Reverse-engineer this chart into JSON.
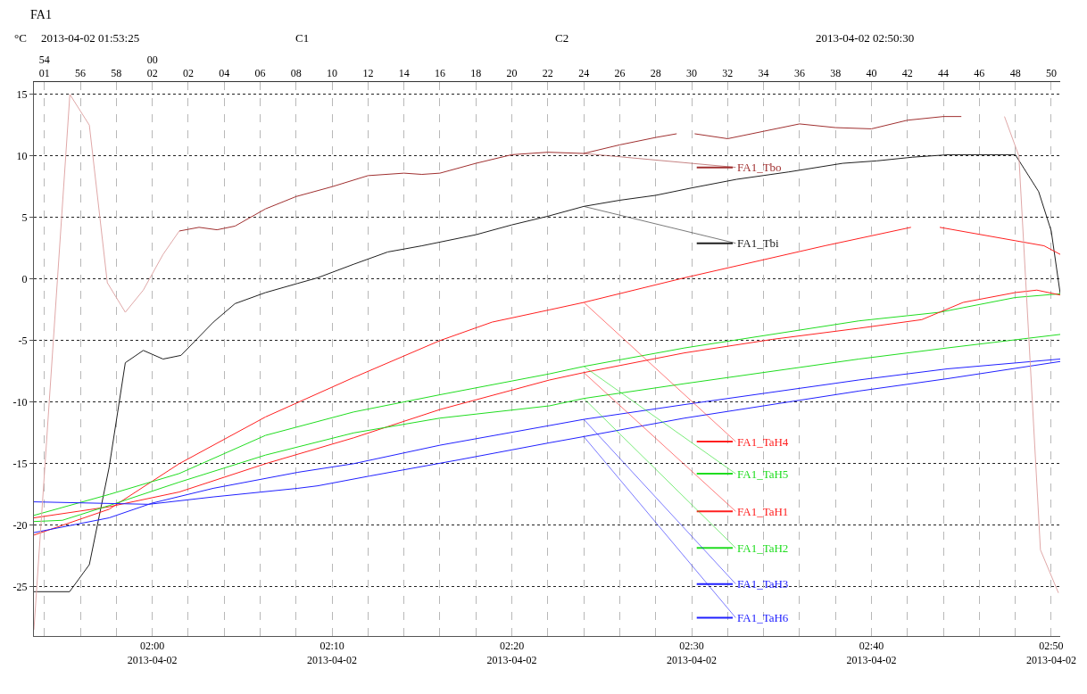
{
  "chart_data": {
    "type": "line",
    "title": "FA1",
    "ylabel": "°C",
    "annotations": [
      "2013-04-02 01:53:25",
      "C1",
      "C2",
      "2013-04-02 02:50:30"
    ],
    "xlim": [
      "2013-04-02T01:53:25",
      "2013-04-02T02:50:30"
    ],
    "xticks": [
      {
        "value": "2013-04-02T02:00",
        "label": "02:00\n2013-04-02"
      },
      {
        "value": "2013-04-02T02:10",
        "label": "02:10\n2013-04-02"
      },
      {
        "value": "2013-04-02T02:20",
        "label": "02:20\n2013-04-02"
      },
      {
        "value": "2013-04-02T02:30",
        "label": "02:30\n2013-04-02"
      },
      {
        "value": "2013-04-02T02:40",
        "label": "02:40\n2013-04-02"
      },
      {
        "value": "2013-04-02T02:50",
        "label": "02:50\n2013-04-02"
      }
    ],
    "x2lim": [
      "2013-04-02T01:53:25",
      "2013-04-02T02:50:30"
    ],
    "x2ticks": [
      {
        "value": "2013-04-02T01:54",
        "label": "54\n01"
      },
      {
        "value": "2013-04-02T01:56",
        "label": "56"
      },
      {
        "value": "2013-04-02T01:58",
        "label": "58"
      },
      {
        "value": "2013-04-02T02:00",
        "label": "00\n02"
      },
      {
        "value": "2013-04-02T02:02",
        "label": "02"
      },
      {
        "value": "2013-04-02T02:04",
        "label": "04"
      },
      {
        "value": "2013-04-02T02:06",
        "label": "06"
      },
      {
        "value": "2013-04-02T02:08",
        "label": "08"
      },
      {
        "value": "2013-04-02T02:10",
        "label": "10"
      },
      {
        "value": "2013-04-02T02:12",
        "label": "12"
      },
      {
        "value": "2013-04-02T02:14",
        "label": "14"
      },
      {
        "value": "2013-04-02T02:16",
        "label": "16"
      },
      {
        "value": "2013-04-02T02:18",
        "label": "18"
      },
      {
        "value": "2013-04-02T02:20",
        "label": "20"
      },
      {
        "value": "2013-04-02T02:22",
        "label": "22"
      },
      {
        "value": "2013-04-02T02:24",
        "label": "24"
      },
      {
        "value": "2013-04-02T02:26",
        "label": "26"
      },
      {
        "value": "2013-04-02T02:28",
        "label": "28"
      },
      {
        "value": "2013-04-02T02:30",
        "label": "30"
      },
      {
        "value": "2013-04-02T02:32",
        "label": "32"
      },
      {
        "value": "2013-04-02T02:34",
        "label": "34"
      },
      {
        "value": "2013-04-02T02:36",
        "label": "36"
      },
      {
        "value": "2013-04-02T02:38",
        "label": "38"
      },
      {
        "value": "2013-04-02T02:40",
        "label": "40"
      },
      {
        "value": "2013-04-02T02:42",
        "label": "42"
      },
      {
        "value": "2013-04-02T02:44",
        "label": "44"
      },
      {
        "value": "2013-04-02T02:46",
        "label": "46"
      },
      {
        "value": "2013-04-02T02:48",
        "label": "48"
      },
      {
        "value": "2013-04-02T02:50",
        "label": "50"
      }
    ],
    "ylim": [
      -29,
      16
    ],
    "yticks": [
      -25,
      -20,
      -15,
      -10,
      -5,
      0,
      5,
      10,
      15
    ],
    "grid": true,
    "legend": "right",
    "marker": "none",
    "line_style": "solid",
    "series": [
      {
        "name": "FA1_Tbo",
        "color": "#a03030",
        "x": [
          "2013-04-02T02:01:30",
          "2013-04-02T02:02:36",
          "2013-04-02T02:03:36",
          "2013-04-02T02:04:36",
          "2013-04-02T02:06:18",
          "2013-04-02T02:08",
          "2013-04-02T02:10",
          "2013-04-02T02:12",
          "2013-04-02T02:14",
          "2013-04-02T02:15",
          "2013-04-02T02:16",
          "2013-04-02T02:18",
          "2013-04-02T02:20",
          "2013-04-02T02:22",
          "2013-04-02T02:24",
          "2013-04-02T02:26",
          "2013-04-02T02:28",
          "2013-04-02T02:29:10",
          "2013-04-02T02:29:40",
          "2013-04-02T02:30:10",
          "2013-04-02T02:32",
          "2013-04-02T02:34",
          "2013-04-02T02:36",
          "2013-04-02T02:38",
          "2013-04-02T02:40",
          "2013-04-02T02:42",
          "2013-04-02T02:44",
          "2013-04-02T02:45"
        ],
        "values": [
          3.9,
          4.2,
          4.0,
          4.3,
          5.7,
          6.7,
          7.5,
          8.4,
          8.6,
          8.5,
          8.6,
          9.4,
          10.1,
          10.3,
          10.2,
          10.9,
          11.5,
          11.8,
          null,
          11.8,
          11.4,
          12.0,
          12.6,
          12.3,
          12.2,
          12.9,
          13.2,
          13.2
        ]
      },
      {
        "name": "FA1_Tbi",
        "color": "#202020",
        "x": [
          "2013-04-02T01:53:25",
          "2013-04-02T01:55:24",
          "2013-04-02T01:56:30",
          "2013-04-02T01:57:36",
          "2013-04-02T01:58:30",
          "2013-04-02T01:59:30",
          "2013-04-02T02:00:36",
          "2013-04-02T02:01:36",
          "2013-04-02T02:03:24",
          "2013-04-02T02:04:36",
          "2013-04-02T02:06:18",
          "2013-04-02T02:08:06",
          "2013-04-02T02:09:12",
          "2013-04-02T02:11:12",
          "2013-04-02T02:13:06",
          "2013-04-02T02:15",
          "2013-04-02T02:18",
          "2013-04-02T02:20",
          "2013-04-02T02:22",
          "2013-04-02T02:24",
          "2013-04-02T02:26",
          "2013-04-02T02:28",
          "2013-04-02T02:30",
          "2013-04-02T02:32:30",
          "2013-04-02T02:35:24",
          "2013-04-02T02:38:24",
          "2013-04-02T02:40:18",
          "2013-04-02T02:42:18",
          "2013-04-02T02:44:18",
          "2013-04-02T02:48",
          "2013-04-02T02:49:18",
          "2013-04-02T02:50",
          "2013-04-02T02:50:30"
        ],
        "values": [
          -25.4,
          -25.4,
          -23.2,
          -15.3,
          -6.8,
          -5.8,
          -6.5,
          -6.2,
          -3.5,
          -2.0,
          -1.1,
          -0.35,
          0.1,
          1.2,
          2.2,
          2.7,
          3.6,
          4.4,
          5.1,
          5.9,
          6.4,
          6.8,
          7.4,
          8.1,
          8.7,
          9.4,
          9.6,
          9.9,
          10.1,
          10.1,
          7.1,
          3.9,
          -1.2
        ]
      },
      {
        "name": "FA1_TaH4",
        "color": "#ff2020",
        "x": [
          "2013-04-02T01:53:25",
          "2013-04-02T01:57:36",
          "2013-04-02T02:01:30",
          "2013-04-02T02:06:18",
          "2013-04-02T02:11:12",
          "2013-04-02T02:16",
          "2013-04-02T02:18:54",
          "2013-04-02T02:22:06",
          "2013-04-02T02:24",
          "2013-04-02T02:29:36",
          "2013-04-02T02:37:24",
          "2013-04-02T02:42:12",
          "2013-04-02T02:43",
          "2013-04-02T02:43:48",
          "2013-04-02T02:49:36",
          "2013-04-02T02:50:30"
        ],
        "values": [
          -20.8,
          -18.7,
          -15.0,
          -11.2,
          -8.0,
          -5.0,
          -3.5,
          -2.5,
          -1.9,
          0.1,
          2.7,
          4.2,
          null,
          4.2,
          2.7,
          2.0
        ]
      },
      {
        "name": "FA1_TaH5",
        "color": "#20dd20",
        "x": [
          "2013-04-02T01:53:25",
          "2013-04-02T01:57:36",
          "2013-04-02T02:01:30",
          "2013-04-02T02:06:18",
          "2013-04-02T02:11:12",
          "2013-04-02T02:16",
          "2013-04-02T02:22:06",
          "2013-04-02T02:24",
          "2013-04-02T02:29:36",
          "2013-04-02T02:39:18",
          "2013-04-02T02:43:48",
          "2013-04-02T02:48",
          "2013-04-02T02:50:30"
        ],
        "values": [
          -19.2,
          -17.5,
          -15.8,
          -12.7,
          -10.8,
          -9.4,
          -7.7,
          -7.1,
          -5.6,
          -3.4,
          -2.7,
          -1.5,
          -1.2
        ]
      },
      {
        "name": "FA1_TaH1",
        "color": "#ff2020",
        "x": [
          "2013-04-02T01:53:25",
          "2013-04-02T01:57:36",
          "2013-04-02T02:01:30",
          "2013-04-02T02:06:18",
          "2013-04-02T02:11:12",
          "2013-04-02T02:16",
          "2013-04-02T02:22:06",
          "2013-04-02T02:24",
          "2013-04-02T02:29:36",
          "2013-04-02T02:34:30",
          "2013-04-02T02:39:18",
          "2013-04-02T02:42:48",
          "2013-04-02T02:45:06",
          "2013-04-02T02:48",
          "2013-04-02T02:49:12",
          "2013-04-02T02:50:30"
        ],
        "values": [
          -19.4,
          -18.5,
          -17.3,
          -15.0,
          -12.9,
          -10.6,
          -8.2,
          -7.6,
          -6.0,
          -4.9,
          -4.0,
          -3.3,
          -1.9,
          -1.1,
          -0.9,
          -1.3
        ]
      },
      {
        "name": "FA1_TaH2",
        "color": "#20dd20",
        "x": [
          "2013-04-02T01:53:25",
          "2013-04-02T01:55",
          "2013-04-02T01:57:36",
          "2013-04-02T02:01:30",
          "2013-04-02T02:06:18",
          "2013-04-02T02:11:12",
          "2013-04-02T02:16",
          "2013-04-02T02:22:06",
          "2013-04-02T02:24",
          "2013-04-02T02:29:36",
          "2013-04-02T02:39:18",
          "2013-04-02T02:44:12",
          "2013-04-02T02:50:30"
        ],
        "values": [
          -19.7,
          -19.6,
          -18.4,
          -16.5,
          -14.3,
          -12.5,
          -11.3,
          -10.3,
          -9.7,
          -8.5,
          -6.5,
          -5.6,
          -4.5
        ]
      },
      {
        "name": "FA1_TaH3",
        "color": "#2020ff",
        "x": [
          "2013-04-02T01:53:25",
          "2013-04-02T01:57:36",
          "2013-04-02T02:00",
          "2013-04-02T02:03:24",
          "2013-04-02T02:08:06",
          "2013-04-02T02:11:12",
          "2013-04-02T02:16",
          "2013-04-02T02:22:06",
          "2013-04-02T02:24",
          "2013-04-02T02:29:36",
          "2013-04-02T02:39:18",
          "2013-04-02T02:44:12",
          "2013-04-02T02:50:30"
        ],
        "values": [
          -20.6,
          -19.4,
          -18.2,
          -17.0,
          -15.7,
          -15.0,
          -13.5,
          -11.9,
          -11.4,
          -10.2,
          -8.2,
          -7.3,
          -6.5
        ]
      },
      {
        "name": "FA1_TaH6",
        "color": "#2020ff",
        "x": [
          "2013-04-02T01:53:25",
          "2013-04-02T01:59:48",
          "2013-04-02T02:03:24",
          "2013-04-02T02:08:06",
          "2013-04-02T02:09:12",
          "2013-04-02T02:12:06",
          "2013-04-02T02:17",
          "2013-04-02T02:22:06",
          "2013-04-02T02:24",
          "2013-04-02T02:29:36",
          "2013-04-02T02:39:18",
          "2013-04-02T02:44:12",
          "2013-04-02T02:50:30"
        ],
        "values": [
          -18.1,
          -18.3,
          -17.7,
          -17.0,
          -16.8,
          -16.0,
          -14.7,
          -13.3,
          -12.8,
          -11.3,
          -9.1,
          -8.1,
          -6.7
        ]
      },
      {
        "color": "#e0a8a8",
        "x": [
          "2013-04-02T01:53:25",
          "2013-04-02T01:55:25",
          "2013-04-02T01:56:30",
          "2013-04-02T01:57:30",
          "2013-04-02T01:58:30",
          "2013-04-02T01:59:30",
          "2013-04-02T02:00:36",
          "2013-04-02T02:01:30",
          "2013-04-02T02:20",
          "2013-04-02T02:47:24",
          "2013-04-02T02:48:12",
          "2013-04-02T02:49:24",
          "2013-04-02T02:50:24"
        ],
        "values": [
          -28.5,
          15.0,
          12.5,
          -0.3,
          -2.7,
          -0.9,
          2.0,
          3.9,
          null,
          13.2,
          10.0,
          -22.0,
          -25.5
        ]
      }
    ]
  }
}
